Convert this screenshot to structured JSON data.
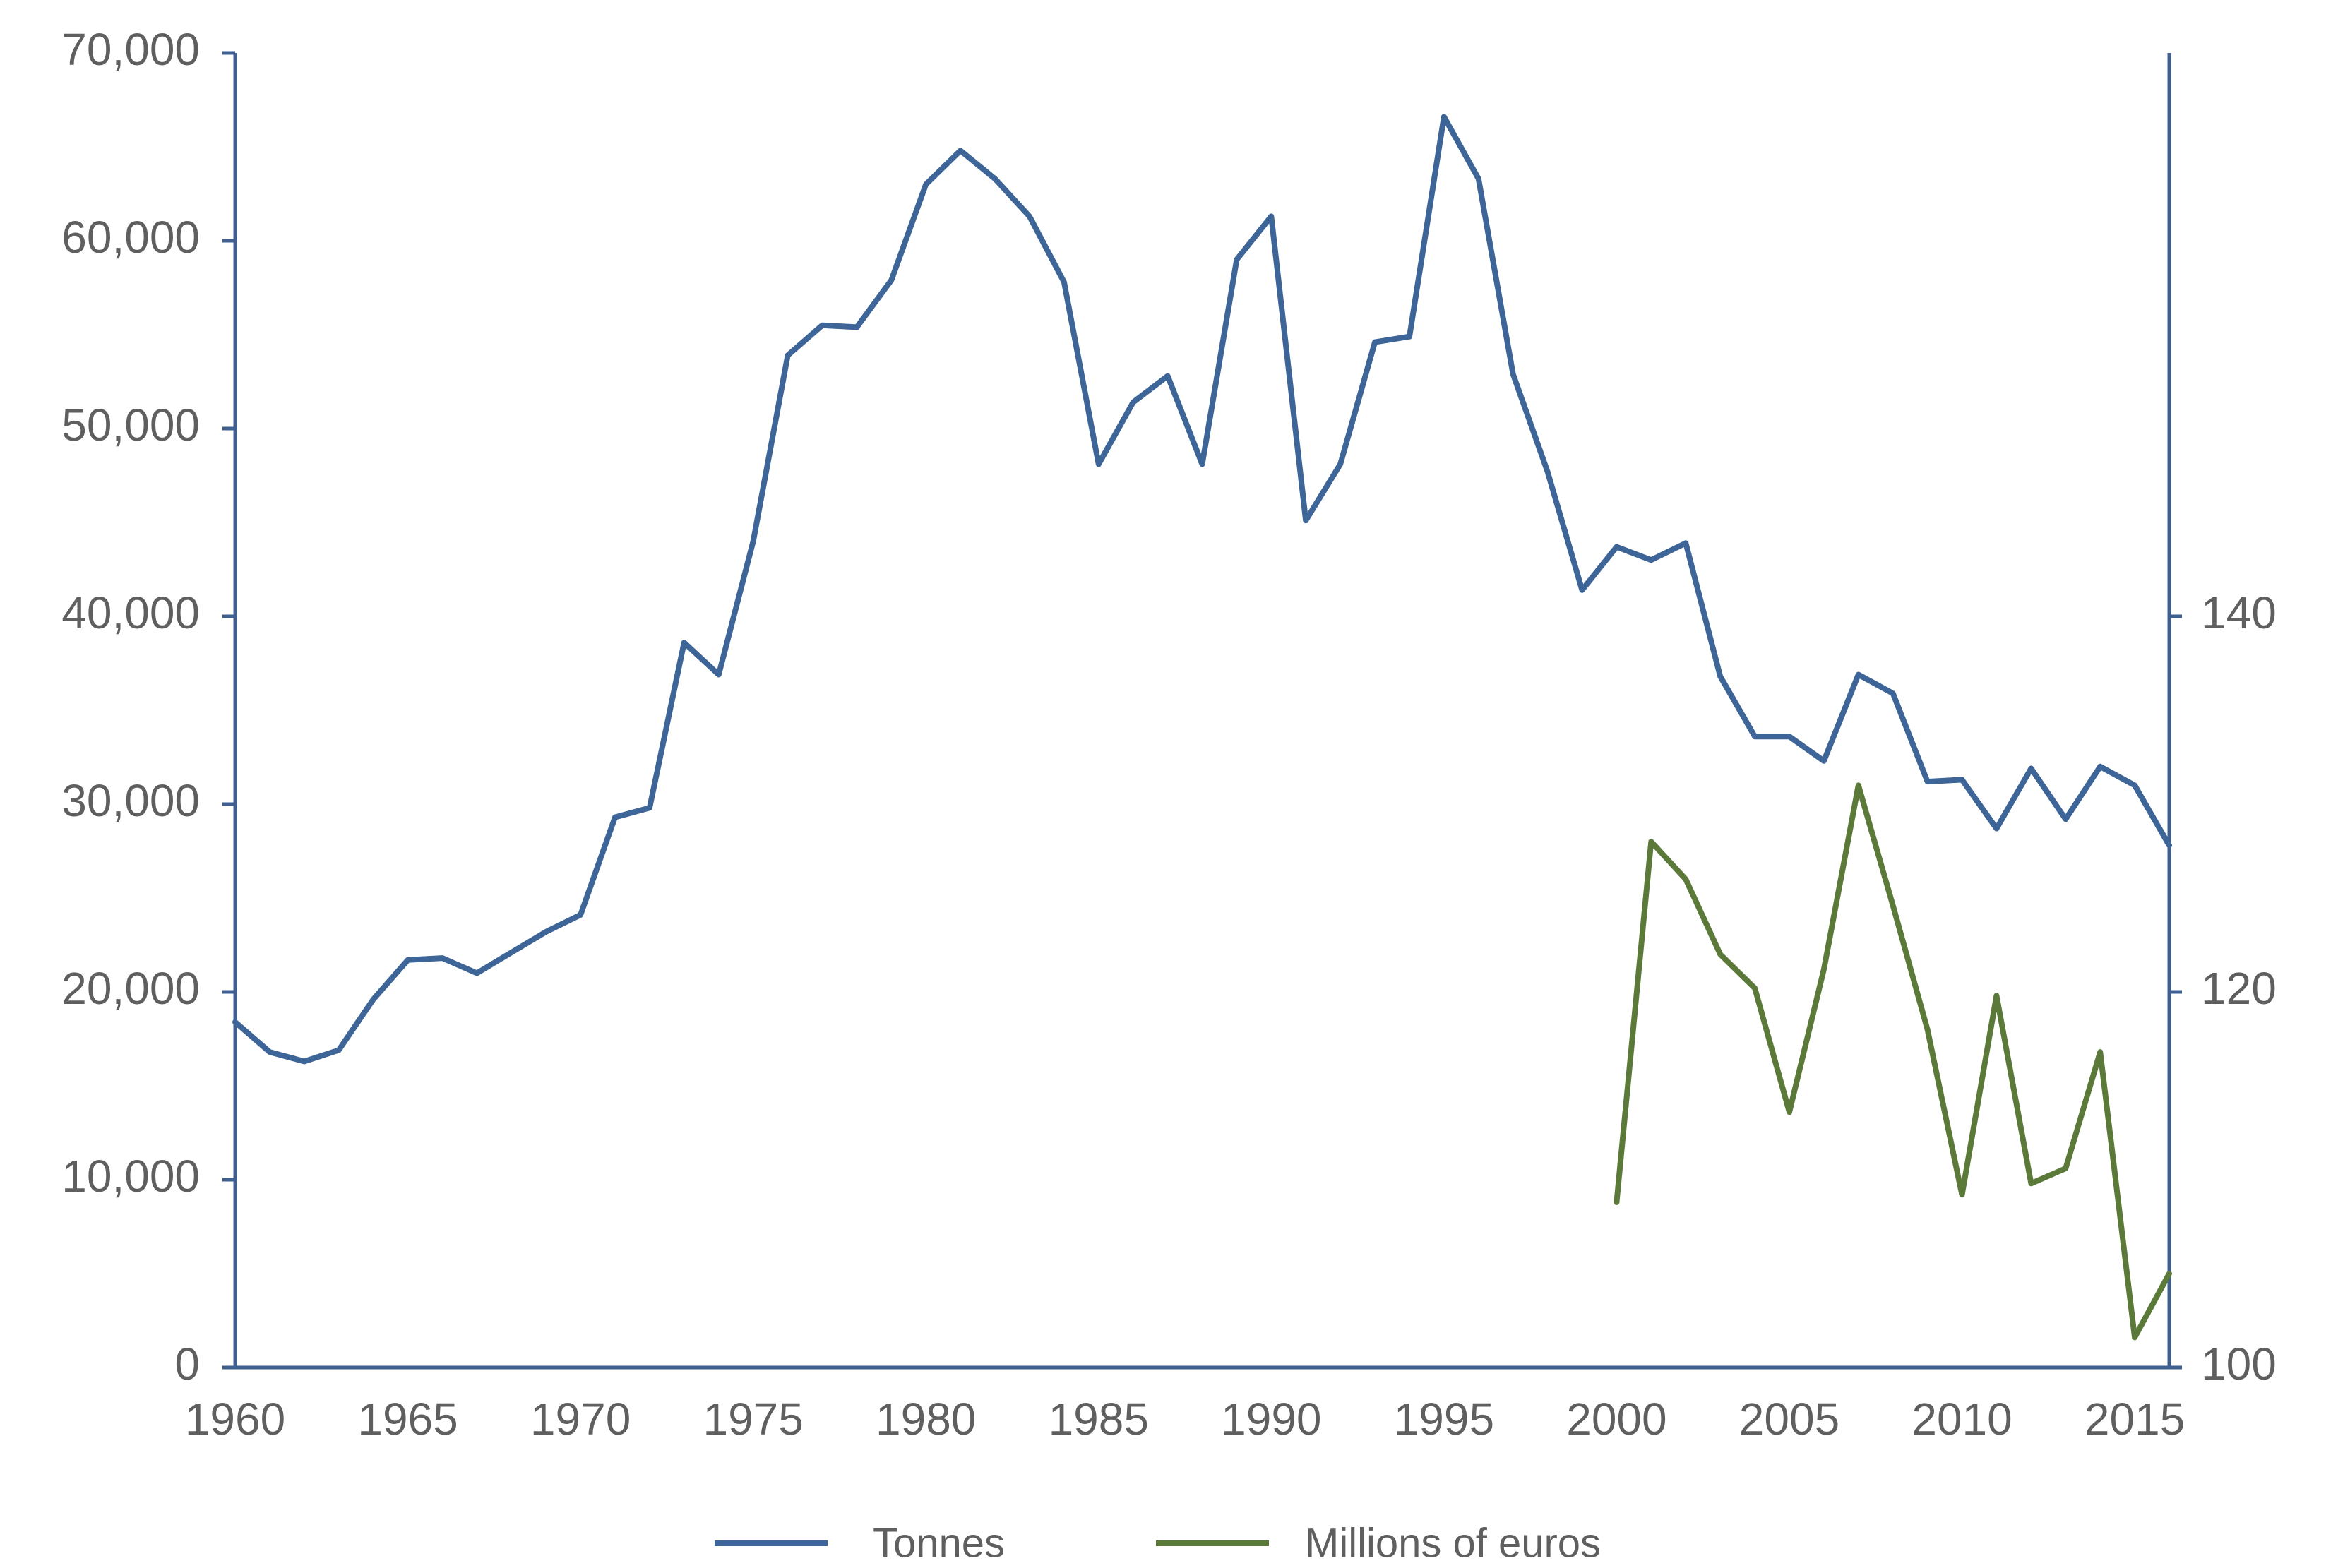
{
  "chart_data": {
    "type": "line",
    "title": "",
    "xlabel": "",
    "ylabel": "",
    "y2label": "",
    "grid": false,
    "legend": "bottom-center",
    "xlim": [
      1960,
      2016
    ],
    "ylim": [
      0,
      70000
    ],
    "y2lim": [
      100,
      170
    ],
    "x_ticks": [
      1960,
      1965,
      1970,
      1975,
      1980,
      1985,
      1990,
      1995,
      2000,
      2005,
      2010,
      2015
    ],
    "x_tick_labels": [
      "1960",
      "1965",
      "1970",
      "1975",
      "1980",
      "1985",
      "1990",
      "1995",
      "2000",
      "2005",
      "2010",
      "2015"
    ],
    "y_ticks": [
      0,
      10000,
      20000,
      30000,
      40000,
      50000,
      60000,
      70000
    ],
    "y_tick_labels": [
      "0",
      "10,000",
      "20,000",
      "30,000",
      "40,000",
      "50,000",
      "60,000",
      "70,000"
    ],
    "y2_ticks": [
      100,
      120,
      140
    ],
    "y2_tick_labels": [
      "100",
      "120",
      "140"
    ],
    "series": [
      {
        "name": "Tonnes",
        "axis": "left",
        "color": "#3e6597",
        "x": [
          1960,
          1961,
          1962,
          1963,
          1964,
          1965,
          1966,
          1967,
          1968,
          1969,
          1970,
          1971,
          1972,
          1973,
          1974,
          1975,
          1976,
          1977,
          1978,
          1979,
          1980,
          1981,
          1982,
          1983,
          1984,
          1985,
          1986,
          1987,
          1988,
          1989,
          1990,
          1991,
          1992,
          1993,
          1994,
          1995,
          1996,
          1997,
          1998,
          1999,
          2000,
          2001,
          2002,
          2003,
          2004,
          2005,
          2006,
          2007,
          2008,
          2009,
          2010,
          2011,
          2012,
          2013,
          2014,
          2015,
          2016
        ],
        "values": [
          18400,
          16800,
          16300,
          16900,
          19600,
          21700,
          21800,
          21000,
          22100,
          23200,
          24100,
          29300,
          29800,
          38600,
          36900,
          44000,
          53900,
          55500,
          55400,
          57900,
          63000,
          64800,
          63300,
          61300,
          57800,
          48100,
          51400,
          52800,
          48100,
          59000,
          61300,
          45100,
          48100,
          54600,
          54900,
          66600,
          63300,
          52900,
          47700,
          41400,
          43700,
          43000,
          43900,
          36800,
          33600,
          33600,
          32300,
          36900,
          35900,
          31200,
          31300,
          28700,
          31900,
          29200,
          32000,
          31000,
          27800
        ]
      },
      {
        "name": "Millions of euros",
        "axis": "right",
        "color": "#5b7a39",
        "x": [
          2000,
          2001,
          2002,
          2003,
          2004,
          2005,
          2006,
          2007,
          2008,
          2009,
          2010,
          2011,
          2012,
          2013,
          2014,
          2015,
          2016
        ],
        "values": [
          108.8,
          128.0,
          126.0,
          122.0,
          120.2,
          113.6,
          121.2,
          131.0,
          124.6,
          118.0,
          109.2,
          119.8,
          109.8,
          110.6,
          116.8,
          101.6,
          105.0
        ]
      }
    ]
  }
}
